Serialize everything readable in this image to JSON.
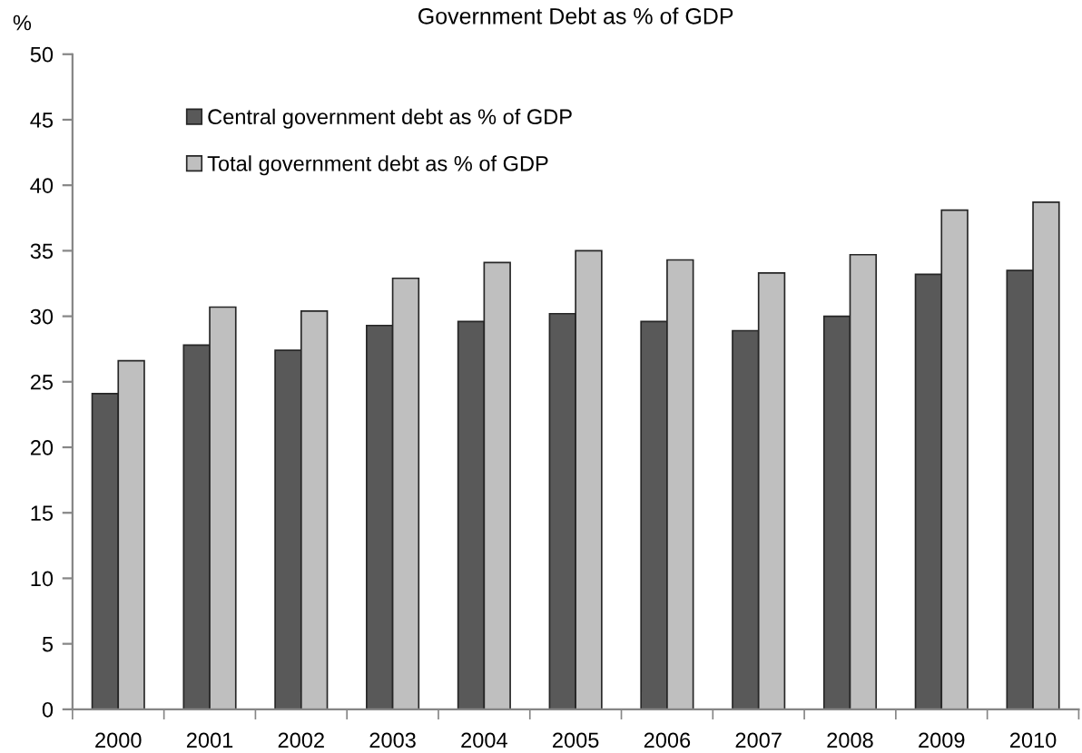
{
  "chart_data": {
    "type": "bar",
    "title": "Government Debt as % of GDP",
    "ylabel": "%",
    "categories": [
      "2000",
      "2001",
      "2002",
      "2003",
      "2004",
      "2005",
      "2006",
      "2007",
      "2008",
      "2009",
      "2010"
    ],
    "series": [
      {
        "name": "Central government debt as % of GDP",
        "color": "#595959",
        "values": [
          24.1,
          27.8,
          27.4,
          29.3,
          29.6,
          30.2,
          29.6,
          28.9,
          30.0,
          33.2,
          33.5
        ]
      },
      {
        "name": "Total government debt as % of GDP",
        "color": "#bfbfbf",
        "values": [
          26.6,
          30.7,
          30.4,
          32.9,
          34.1,
          35.0,
          34.3,
          33.3,
          34.7,
          38.1,
          38.7
        ]
      }
    ],
    "ylim": [
      0,
      50
    ],
    "yticks": [
      0,
      5,
      10,
      15,
      20,
      25,
      30,
      35,
      40,
      45,
      50
    ],
    "legend": "top left",
    "grid": false
  }
}
